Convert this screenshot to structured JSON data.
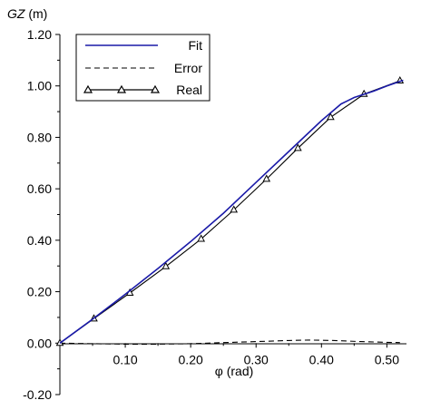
{
  "chart_data": {
    "type": "line",
    "xlabel": "φ  (rad)",
    "ylabel": {
      "var": "GZ",
      "unit": " (m)"
    },
    "xlim": [
      0,
      0.53
    ],
    "ylim": [
      -0.2,
      1.2
    ],
    "x_ticks": [
      {
        "value": 0.1,
        "label": "0.10"
      },
      {
        "value": 0.2,
        "label": "0.20"
      },
      {
        "value": 0.3,
        "label": "0.30"
      },
      {
        "value": 0.4,
        "label": "0.40"
      },
      {
        "value": 0.5,
        "label": "0.50"
      }
    ],
    "y_ticks": [
      {
        "value": -0.2,
        "label": "-0.20"
      },
      {
        "value": 0.0,
        "label": "0.00"
      },
      {
        "value": 0.2,
        "label": "0.20"
      },
      {
        "value": 0.4,
        "label": "0.40"
      },
      {
        "value": 0.6,
        "label": "0.60"
      },
      {
        "value": 0.8,
        "label": "0.80"
      },
      {
        "value": 1.0,
        "label": "1.00"
      },
      {
        "value": 1.2,
        "label": "1.20"
      }
    ],
    "grid": false,
    "legend_position": "top-left",
    "series": [
      {
        "name": "Fit",
        "style": "solid",
        "color": "#1a1aa8",
        "x": [
          0,
          0.05,
          0.1,
          0.15,
          0.2,
          0.25,
          0.3,
          0.35,
          0.4,
          0.43,
          0.45,
          0.48,
          0.5,
          0.525
        ],
        "y": [
          0,
          0.093,
          0.19,
          0.29,
          0.395,
          0.505,
          0.625,
          0.745,
          0.865,
          0.93,
          0.955,
          0.98,
          1.0,
          1.022
        ]
      },
      {
        "name": "Error",
        "style": "dashed",
        "color": "#000000",
        "x": [
          0,
          0.05,
          0.1,
          0.15,
          0.2,
          0.25,
          0.3,
          0.35,
          0.38,
          0.42,
          0.46,
          0.5,
          0.52
        ],
        "y": [
          0,
          -0.002,
          -0.004,
          -0.004,
          -0.002,
          0.002,
          0.006,
          0.01,
          0.012,
          0.01,
          0.006,
          0.003,
          0.002
        ]
      },
      {
        "name": "Real",
        "style": "solid",
        "marker": "triangle",
        "color": "#000000",
        "x": [
          0,
          0.052,
          0.107,
          0.162,
          0.216,
          0.266,
          0.316,
          0.364,
          0.414,
          0.465,
          0.52
        ],
        "y": [
          0,
          0.095,
          0.195,
          0.298,
          0.405,
          0.518,
          0.638,
          0.758,
          0.878,
          0.968,
          1.02
        ]
      }
    ]
  }
}
